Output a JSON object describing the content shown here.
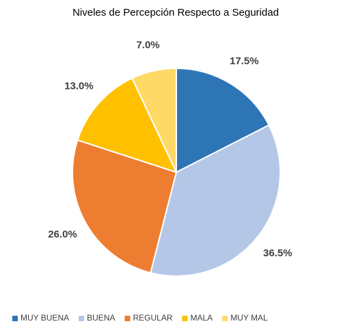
{
  "chart_data": {
    "type": "pie",
    "title": "Niveles de Percepción Respecto a Seguridad",
    "categories": [
      "MUY BUENA",
      "BUENA",
      "REGULAR",
      "MALA",
      "MUY MAL"
    ],
    "values": [
      17.5,
      36.5,
      26.0,
      13.0,
      7.0
    ],
    "value_labels": [
      "17.5%",
      "36.5%",
      "26.0%",
      "13.0%",
      "7.0%"
    ],
    "colors": [
      "#2e75b6",
      "#b4c7e7",
      "#ed7d31",
      "#ffc000",
      "#ffd966"
    ],
    "legend": "bottom"
  }
}
